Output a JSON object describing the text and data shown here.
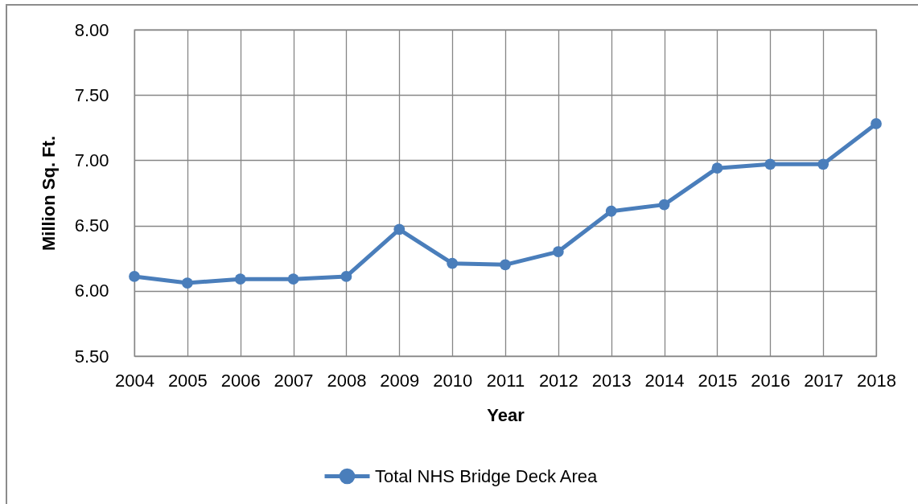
{
  "chart_data": {
    "type": "line",
    "xlabel": "Year",
    "ylabel": "Million Sq. Ft.",
    "categories": [
      "2004",
      "2005",
      "2006",
      "2007",
      "2008",
      "2009",
      "2010",
      "2011",
      "2012",
      "2013",
      "2014",
      "2015",
      "2016",
      "2017",
      "2018"
    ],
    "series": [
      {
        "name": "Total NHS Bridge Deck Area",
        "color": "#4a7ebb",
        "values": [
          6.11,
          6.06,
          6.09,
          6.09,
          6.11,
          6.47,
          6.21,
          6.2,
          6.3,
          6.61,
          6.66,
          6.94,
          6.97,
          6.97,
          7.28
        ]
      }
    ],
    "ylim": [
      5.5,
      8
    ],
    "yticks": [
      {
        "value": 5.5,
        "label": "5.50"
      },
      {
        "value": 6,
        "label": "6.00"
      },
      {
        "value": 6.5,
        "label": "6.50"
      },
      {
        "value": 7,
        "label": "7.00"
      },
      {
        "value": 7.5,
        "label": "7.50"
      },
      {
        "value": 8,
        "label": "8.00"
      }
    ],
    "grid": true,
    "legend": "bottom",
    "marker": "circle",
    "line_style": "solid"
  }
}
